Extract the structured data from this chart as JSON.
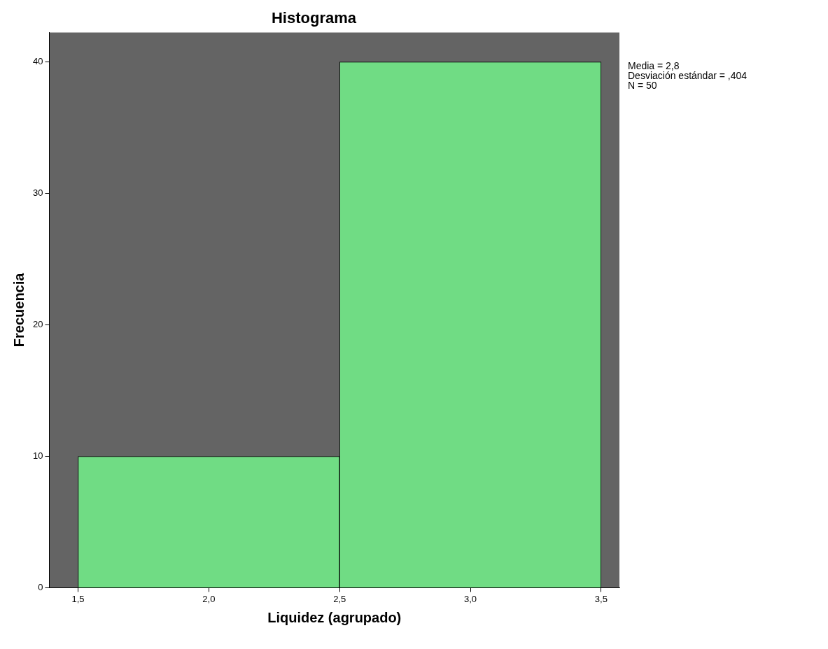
{
  "chart_data": {
    "type": "histogram",
    "title": "Histograma",
    "xlabel": "Liquidez (agrupado)",
    "ylabel": "Frecuencia",
    "bins": [
      1.5,
      2.5,
      3.5
    ],
    "values": [
      10,
      40
    ],
    "color": "#70dc84",
    "xlim": [
      1.39,
      3.57
    ],
    "ylim": [
      0,
      42.25
    ],
    "xticks": [
      {
        "value": 1.5,
        "label": "1,5"
      },
      {
        "value": 2.0,
        "label": "2,0"
      },
      {
        "value": 2.5,
        "label": "2,5"
      },
      {
        "value": 3.0,
        "label": "3,0"
      },
      {
        "value": 3.5,
        "label": "3,5"
      }
    ],
    "yticks": [
      0,
      10,
      20,
      30,
      40
    ],
    "grid": false,
    "legend": false,
    "annotations": [
      "Media = 2,8",
      "Desviación estándar = ,404",
      "N = 50"
    ]
  }
}
